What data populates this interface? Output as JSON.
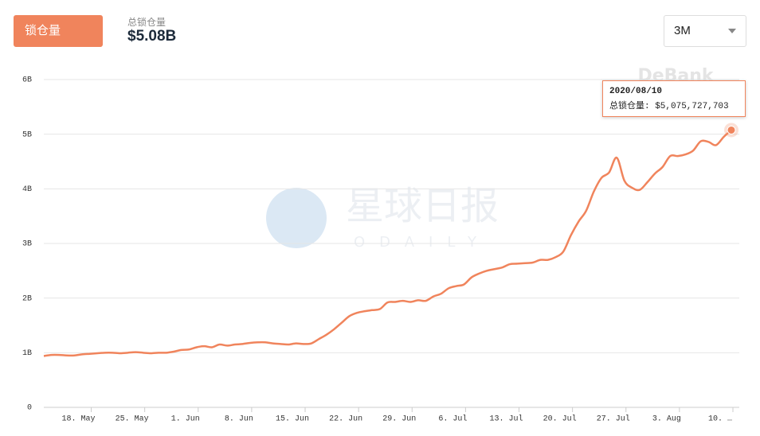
{
  "chart_data": {
    "type": "line",
    "button": "锁仓量",
    "metric_label": "总锁仓量",
    "metric_value": "$5.08B",
    "range": "3M",
    "watermarks": [
      "DeBank",
      "星球日报",
      "ODAILY"
    ],
    "tooltip": {
      "title": "2020/08/10",
      "text": "总锁仓量: $5,075,727,703"
    },
    "categories": [
      null,
      null,
      null,
      null,
      null,
      null,
      "18. May",
      null,
      null,
      null,
      null,
      null,
      null,
      "25. May",
      null,
      null,
      null,
      null,
      null,
      null,
      "1. Jun",
      null,
      null,
      null,
      null,
      null,
      null,
      "8. Jun",
      null,
      null,
      null,
      null,
      null,
      null,
      "15. Jun",
      null,
      null,
      null,
      null,
      null,
      null,
      "22. Jun",
      null,
      null,
      null,
      null,
      null,
      null,
      "29. Jun",
      null,
      null,
      null,
      null,
      null,
      null,
      "6. Jul",
      null,
      null,
      null,
      null,
      null,
      null,
      "13. Jul",
      null,
      null,
      null,
      null,
      null,
      null,
      "20. Jul",
      null,
      null,
      null,
      null,
      null,
      null,
      "27. Jul",
      null,
      null,
      null,
      null,
      null,
      null,
      "3. Aug",
      null,
      null,
      null,
      null,
      null,
      null,
      "10. …"
    ],
    "series": [
      {
        "name": "总锁仓量",
        "color": "#f0845c",
        "values": [
          0.94,
          0.96,
          0.96,
          0.95,
          0.95,
          0.97,
          0.98,
          0.99,
          1.0,
          1.0,
          0.99,
          1.0,
          1.01,
          1.0,
          0.99,
          1.0,
          1.0,
          1.02,
          1.05,
          1.06,
          1.1,
          1.12,
          1.1,
          1.15,
          1.13,
          1.15,
          1.16,
          1.18,
          1.19,
          1.19,
          1.17,
          1.16,
          1.15,
          1.17,
          1.16,
          1.17,
          1.25,
          1.33,
          1.43,
          1.55,
          1.67,
          1.73,
          1.76,
          1.78,
          1.8,
          1.92,
          1.93,
          1.95,
          1.93,
          1.96,
          1.95,
          2.03,
          2.08,
          2.18,
          2.22,
          2.25,
          2.38,
          2.45,
          2.5,
          2.53,
          2.56,
          2.62,
          2.63,
          2.64,
          2.65,
          2.7,
          2.7,
          2.75,
          2.85,
          3.15,
          3.4,
          3.6,
          3.95,
          4.2,
          4.3,
          4.57,
          4.15,
          4.02,
          3.98,
          4.12,
          4.28,
          4.4,
          4.6,
          4.6,
          4.63,
          4.7,
          4.87,
          4.86,
          4.8,
          4.95,
          5.075727703
        ]
      }
    ],
    "ylim": [
      0,
      6
    ],
    "yticks": [
      0,
      {
        "value": 1,
        "label": "1B"
      },
      {
        "value": 2,
        "label": "2B"
      },
      {
        "value": 3,
        "label": "3B"
      },
      {
        "value": 4,
        "label": "4B"
      },
      {
        "value": 5,
        "label": "5B"
      },
      {
        "value": 6,
        "label": "6B"
      }
    ],
    "grid": true
  }
}
